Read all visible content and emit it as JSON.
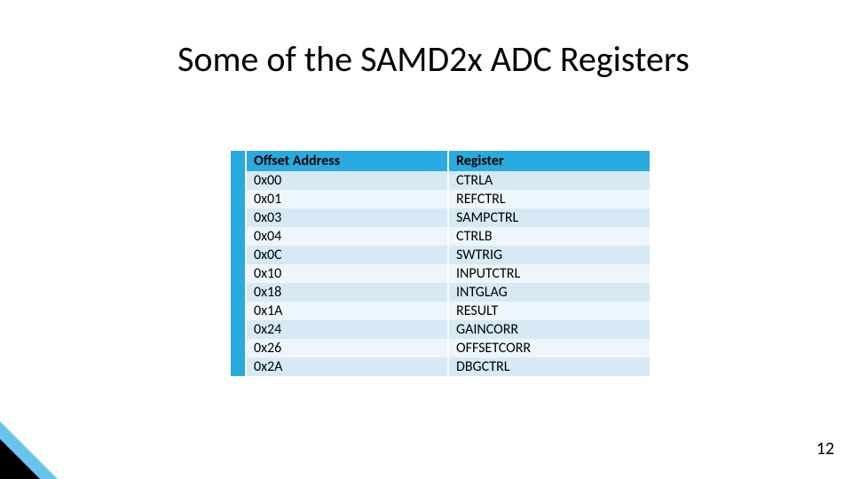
{
  "title": "Some of the SAMD2x ADC Registers",
  "page_number": "12",
  "table": {
    "header_bg": "#29abe2",
    "row_odd_bg": "#d6e9f4",
    "row_even_bg": "#eef6fb",
    "border_color": "#ffffff",
    "columns": [
      "Offset Address",
      "Register"
    ],
    "rows": [
      [
        "0x00",
        "CTRLA"
      ],
      [
        "0x01",
        "REFCTRL"
      ],
      [
        "0x03",
        "SAMPCTRL"
      ],
      [
        "0x04",
        "CTRLB"
      ],
      [
        "0x0C",
        "SWTRIG"
      ],
      [
        "0x10",
        "INPUTCTRL"
      ],
      [
        "0x18",
        "INTGLAG"
      ],
      [
        "0x1A",
        "RESULT"
      ],
      [
        "0x24",
        "GAINCORR"
      ],
      [
        "0x26",
        "OFFSETCORR"
      ],
      [
        "0x2A",
        "DBGCTRL"
      ]
    ]
  },
  "accent": {
    "blue": "#29abe2",
    "black": "#000000"
  }
}
